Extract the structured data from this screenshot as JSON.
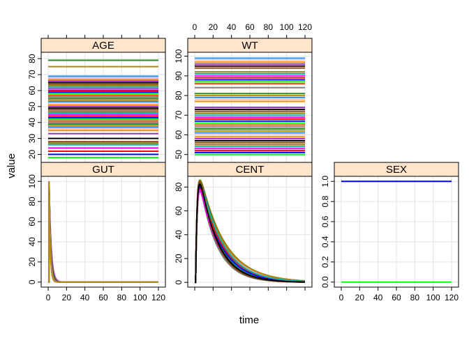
{
  "chart_data": {
    "type": "line",
    "layout": "lattice 3 columns x 2 rows, shared x axis",
    "xlabel": "time",
    "ylabel": "value",
    "xlim": [
      0,
      120
    ],
    "x_ticks": [
      0,
      20,
      40,
      60,
      80,
      100,
      120
    ],
    "colors": [
      "#00ff00",
      "#0000ff",
      "#ff0000",
      "#ff00ff",
      "#00b3b3",
      "#808000",
      "#8b4513",
      "#000000",
      "#9932cc",
      "#ff8c00",
      "#ffc0cb",
      "#1e90ff",
      "#b8860b",
      "#228b22",
      "#808080",
      "#ff4500"
    ],
    "strip_color": "#ffe5cc",
    "grid": true,
    "panels": [
      {
        "title": "AGE",
        "ylim": [
          15,
          84
        ],
        "y_ticks": [
          20,
          30,
          40,
          50,
          60,
          70,
          80
        ],
        "kind": "constant",
        "levels": [
          18,
          20,
          22,
          24,
          26,
          27,
          28,
          30,
          33,
          35,
          36,
          37,
          38,
          39,
          40,
          41,
          42,
          43,
          44,
          45,
          46,
          47,
          48,
          49,
          50,
          51,
          52,
          53,
          54,
          55,
          56,
          57,
          58,
          59,
          60,
          61,
          62,
          63,
          64,
          65,
          66,
          67,
          68,
          69,
          75,
          79
        ]
      },
      {
        "title": "WT",
        "ylim": [
          46,
          102
        ],
        "y_ticks": [
          50,
          60,
          70,
          80,
          90,
          100
        ],
        "kind": "constant",
        "levels": [
          50,
          51,
          52,
          53,
          54,
          55,
          56,
          57,
          58,
          59,
          60,
          61,
          62,
          63,
          64,
          65,
          66,
          67,
          68,
          69,
          70,
          71,
          72,
          73,
          74,
          77,
          78,
          79,
          80,
          81,
          84,
          86,
          87,
          88,
          89,
          90,
          91,
          92,
          94,
          95,
          96,
          97,
          98,
          99
        ]
      },
      {
        "title": "GUT",
        "ylim": [
          -5,
          105
        ],
        "y_ticks": [
          0,
          20,
          40,
          60,
          80,
          100
        ],
        "kind": "absorption",
        "dose": 100,
        "ka_range": [
          0.45,
          0.8
        ],
        "n_series": 10
      },
      {
        "title": "CENT",
        "ylim": [
          -4,
          89
        ],
        "y_ticks": [
          0,
          20,
          40,
          60,
          80
        ],
        "kind": "central",
        "peak_range": [
          76,
          86
        ],
        "ka": 0.6,
        "ke_range": [
          0.036,
          0.055
        ],
        "n_series": 40
      },
      {
        "title": "SEX",
        "ylim": [
          -0.05,
          1.05
        ],
        "y_ticks": [
          0.0,
          0.2,
          0.4,
          0.6,
          0.8,
          1.0
        ],
        "kind": "constant",
        "levels": [
          0,
          1
        ]
      }
    ]
  }
}
